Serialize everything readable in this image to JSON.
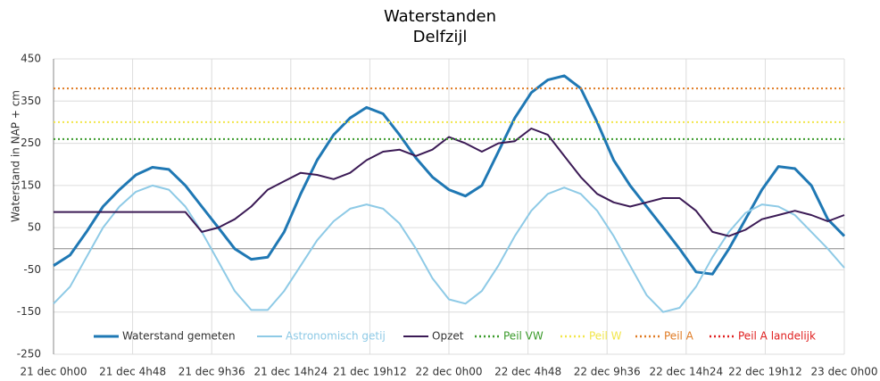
{
  "chart_data": {
    "type": "line",
    "title": "Waterstanden",
    "subtitle": "Delfzijl",
    "y_label": "Waterstand in NAP + cm",
    "xlim": [
      0,
      48
    ],
    "xticks": [
      {
        "value": 0,
        "label": "21 dec 0h00"
      },
      {
        "value": 4.8,
        "label": "21 dec 4h48"
      },
      {
        "value": 9.6,
        "label": "21 dec 9h36"
      },
      {
        "value": 14.4,
        "label": "21 dec 14h24"
      },
      {
        "value": 19.2,
        "label": "21 dec 19h12"
      },
      {
        "value": 24,
        "label": "22 dec 0h00"
      },
      {
        "value": 28.8,
        "label": "22 dec 4h48"
      },
      {
        "value": 33.6,
        "label": "22 dec 9h36"
      },
      {
        "value": 38.4,
        "label": "22 dec 14h24"
      },
      {
        "value": 43.2,
        "label": "22 dec 19h12"
      },
      {
        "value": 48,
        "label": "23 dec 0h00"
      }
    ],
    "ylim": [
      -250,
      450
    ],
    "yticks": [
      -250,
      -150,
      -50,
      50,
      150,
      250,
      350,
      450
    ],
    "grid": true,
    "x": [
      0,
      1,
      2,
      3,
      4,
      5,
      6,
      7,
      8,
      9,
      10,
      11,
      12,
      13,
      14,
      15,
      16,
      17,
      18,
      19,
      20,
      21,
      22,
      23,
      24,
      25,
      26,
      27,
      28,
      29,
      30,
      31,
      32,
      33,
      34,
      35,
      36,
      37,
      38,
      39,
      40,
      41,
      42,
      43,
      44,
      45,
      46,
      47,
      48
    ],
    "series": [
      {
        "name": "Waterstand gemeten",
        "color": "#1f78b4",
        "width": 3,
        "values": [
          -40,
          -15,
          40,
          100,
          140,
          175,
          193,
          188,
          150,
          100,
          50,
          0,
          -25,
          -20,
          40,
          130,
          210,
          270,
          310,
          335,
          320,
          270,
          215,
          170,
          140,
          125,
          150,
          230,
          310,
          370,
          400,
          410,
          380,
          300,
          210,
          150,
          100,
          50,
          0,
          -55,
          -60,
          0,
          70,
          140,
          195,
          190,
          150,
          70,
          30
        ]
      },
      {
        "name": "Astronomisch getij",
        "color": "#8ecae6",
        "width": 2,
        "values": [
          -130,
          -90,
          -20,
          50,
          100,
          135,
          150,
          140,
          100,
          40,
          -30,
          -100,
          -145,
          -145,
          -100,
          -40,
          20,
          65,
          95,
          105,
          95,
          60,
          0,
          -70,
          -120,
          -130,
          -100,
          -40,
          30,
          90,
          130,
          145,
          130,
          90,
          30,
          -40,
          -110,
          -150,
          -140,
          -90,
          -20,
          40,
          85,
          105,
          100,
          80,
          40,
          0,
          -45
        ]
      },
      {
        "name": "Opzet",
        "color": "#3b1a55",
        "width": 2,
        "values": [
          87,
          87,
          87,
          87,
          87,
          87,
          87,
          87,
          87,
          40,
          50,
          70,
          100,
          140,
          160,
          180,
          175,
          165,
          180,
          210,
          230,
          235,
          220,
          235,
          265,
          250,
          230,
          250,
          255,
          285,
          270,
          220,
          170,
          130,
          110,
          100,
          110,
          120,
          120,
          90,
          40,
          30,
          45,
          70,
          80,
          90,
          80,
          65,
          80
        ]
      },
      {
        "name": "Peil VW",
        "color": "#3a9a2a",
        "level": 260
      },
      {
        "name": "Peil W",
        "color": "#f2e64a",
        "level": 300
      },
      {
        "name": "Peil A",
        "color": "#e07b24",
        "level": 380
      },
      {
        "name": "Peil A landelijk",
        "color": "#e02020"
      }
    ]
  }
}
